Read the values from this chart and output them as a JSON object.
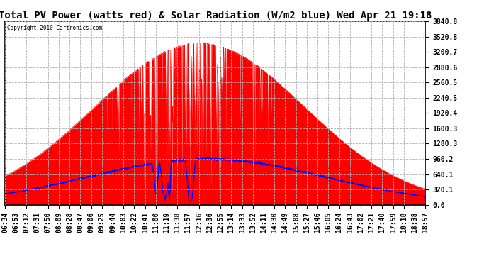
{
  "title": "Total PV Power (watts red) & Solar Radiation (W/m2 blue) Wed Apr 21 19:18",
  "copyright_text": "Copyright 2010 Cartronics.com",
  "y_ticks": [
    0.0,
    320.1,
    640.1,
    960.2,
    1280.3,
    1600.3,
    1920.4,
    2240.5,
    2560.5,
    2880.6,
    3200.7,
    3520.8,
    3840.8
  ],
  "y_tick_labels": [
    "0.0",
    "320.1",
    "640.1",
    "960.2",
    "1280.3",
    "1600.3",
    "1920.4",
    "2240.5",
    "2560.5",
    "2880.6",
    "3200.7",
    "3520.8",
    "3840.8"
  ],
  "ylim": [
    0,
    3840.8
  ],
  "x_labels": [
    "06:34",
    "06:53",
    "07:12",
    "07:31",
    "07:50",
    "08:09",
    "08:28",
    "08:47",
    "09:06",
    "09:25",
    "09:44",
    "10:03",
    "10:22",
    "10:41",
    "11:00",
    "11:19",
    "11:38",
    "11:57",
    "12:16",
    "12:36",
    "12:55",
    "13:14",
    "13:33",
    "13:52",
    "14:11",
    "14:30",
    "14:49",
    "15:08",
    "15:27",
    "15:46",
    "16:05",
    "16:24",
    "16:43",
    "17:02",
    "17:21",
    "17:40",
    "17:59",
    "18:18",
    "18:38",
    "18:57"
  ],
  "background_color": "#ffffff",
  "grid_color": "#b0b0b0",
  "pv_color": "red",
  "solar_color": "blue",
  "title_fontsize": 10,
  "tick_fontsize": 7
}
